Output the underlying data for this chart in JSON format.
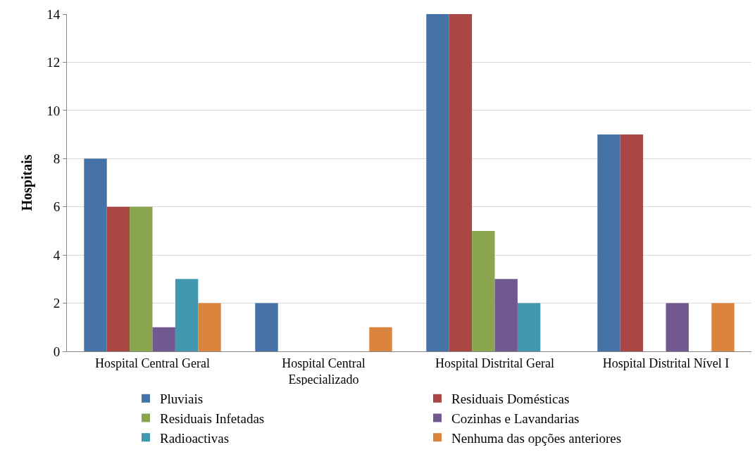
{
  "chart_data": {
    "type": "bar",
    "ylabel": "Hospitais",
    "categories": [
      "Hospital Central Geral",
      "Hospital Central Especializado",
      "Hospital Distrital Geral",
      "Hospital Distrital Nível I"
    ],
    "series": [
      {
        "name": "Pluviais",
        "color": "#4572a7",
        "values": [
          8,
          2,
          14,
          9
        ]
      },
      {
        "name": "Residuais Domésticas",
        "color": "#aa4643",
        "values": [
          6,
          0,
          14,
          9
        ]
      },
      {
        "name": "Residuais Infetadas",
        "color": "#89a54e",
        "values": [
          6,
          0,
          5,
          0
        ]
      },
      {
        "name": "Cozinhas e Lavandarias",
        "color": "#71588f",
        "values": [
          1,
          0,
          3,
          2
        ]
      },
      {
        "name": "Radioactivas",
        "color": "#4198af",
        "values": [
          3,
          0,
          2,
          0
        ]
      },
      {
        "name": "Nenhuma das opções anteriores",
        "color": "#db843d",
        "values": [
          2,
          1,
          0,
          2
        ]
      }
    ],
    "ylim": [
      0,
      14
    ],
    "yticks": [
      0,
      2,
      4,
      6,
      8,
      10,
      12,
      14
    ],
    "grid": "y",
    "legend": "bottom"
  }
}
